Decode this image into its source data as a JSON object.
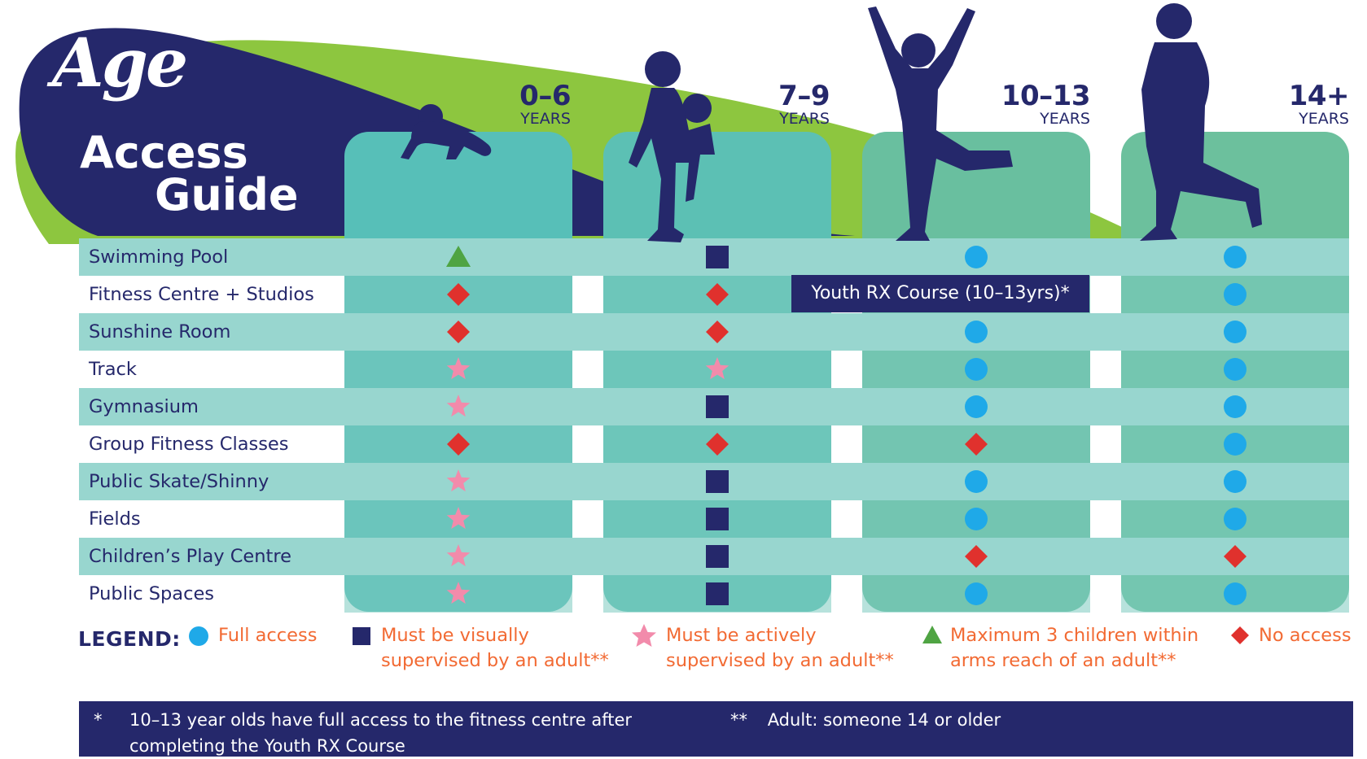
{
  "title": {
    "line1": "Age",
    "line2": "Access",
    "line3": "Guide"
  },
  "age_groups": [
    {
      "range": "0–6",
      "unit": "YEARS"
    },
    {
      "range": "7–9",
      "unit": "YEARS"
    },
    {
      "range": "10–13",
      "unit": "YEARS"
    },
    {
      "range": "14+",
      "unit": "YEARS"
    }
  ],
  "rows": [
    {
      "label": "Swimming Pool",
      "access": [
        "max3",
        "visual",
        "full",
        "full"
      ]
    },
    {
      "label": "Fitness Centre + Studios",
      "access": [
        "none",
        "none",
        "rx",
        "full"
      ]
    },
    {
      "label": "Sunshine Room",
      "access": [
        "none",
        "none",
        "full",
        "full"
      ]
    },
    {
      "label": "Track",
      "access": [
        "active",
        "active",
        "full",
        "full"
      ]
    },
    {
      "label": "Gymnasium",
      "access": [
        "active",
        "visual",
        "full",
        "full"
      ]
    },
    {
      "label": "Group Fitness Classes",
      "access": [
        "none",
        "none",
        "none",
        "full"
      ]
    },
    {
      "label": "Public Skate/Shinny",
      "access": [
        "active",
        "visual",
        "full",
        "full"
      ]
    },
    {
      "label": "Fields",
      "access": [
        "active",
        "visual",
        "full",
        "full"
      ]
    },
    {
      "label": "Children’s Play Centre",
      "access": [
        "active",
        "visual",
        "none",
        "none"
      ]
    },
    {
      "label": "Public Spaces",
      "access": [
        "active",
        "visual",
        "full",
        "full"
      ]
    }
  ],
  "rx_course_label": "Youth RX Course (10–13yrs)*",
  "legend": {
    "title": "LEGEND:",
    "items": [
      {
        "key": "full",
        "line1": "Full access",
        "line2": ""
      },
      {
        "key": "visual",
        "line1": "Must be visually",
        "line2": "supervised by an adult**"
      },
      {
        "key": "active",
        "line1": "Must be actively",
        "line2": "supervised by an adult**"
      },
      {
        "key": "max3",
        "line1": "Maximum 3 children within",
        "line2": "arms reach of an adult**"
      },
      {
        "key": "none",
        "line1": "No access",
        "line2": ""
      }
    ]
  },
  "footnotes": {
    "note1_mark": "*",
    "note1_line1": "10–13 year olds have full access to the fitness centre after",
    "note1_line2": "completing the Youth RX Course",
    "note2_mark": "**",
    "note2_text": "Adult: someone 14 or older"
  },
  "colors": {
    "navy": "#25286b",
    "lime": "#8dc63f",
    "teal_col": "#57bfb8",
    "green_col": "#6cc09d",
    "row_light": "#98d6cf",
    "row_mid": "#7ccbc0",
    "full": "#1fa9e8",
    "visual": "#25286b",
    "active": "#f28bab",
    "max3": "#4fa443",
    "none": "#e0312d",
    "legend_text": "#f26a33"
  }
}
